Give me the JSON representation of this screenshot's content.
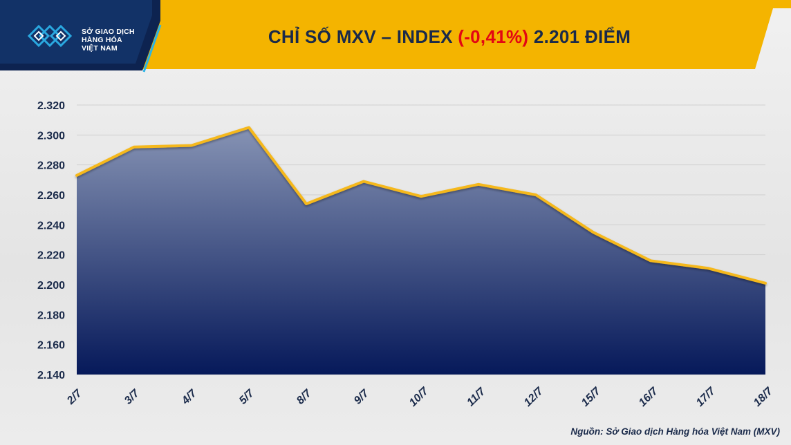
{
  "header": {
    "logo_line1": "SỞ GIAO DỊCH",
    "logo_line2": "HÀNG HÓA",
    "logo_line3": "VIỆT NAM",
    "title_prefix": "CHỈ SỐ MXV – INDEX ",
    "title_change": "(-0,41%)",
    "title_suffix": " 2.201 ĐIỂM"
  },
  "source": "Nguồn: Sở Giao dịch Hàng hóa Việt Nam (MXV)",
  "colors": {
    "banner_yellow": "#f4b400",
    "banner_navy": "#0d2350",
    "line": "#f5b81b",
    "area_top": "#8693b4",
    "area_bottom": "#06195a",
    "negative": "#e30613"
  },
  "chart_data": {
    "type": "area",
    "categories": [
      "2/7",
      "3/7",
      "4/7",
      "5/7",
      "8/7",
      "9/7",
      "10/7",
      "11/7",
      "12/7",
      "15/7",
      "16/7",
      "17/7",
      "18/7"
    ],
    "values": [
      2273,
      2292,
      2293,
      2305,
      2254,
      2269,
      2259,
      2267,
      2260,
      2235,
      2216,
      2211,
      2201
    ],
    "y_ticks": [
      "2.320",
      "2.300",
      "2.280",
      "2.260",
      "2.240",
      "2.220",
      "2.200",
      "2.180",
      "2.160",
      "2.140"
    ],
    "ylim": [
      2140,
      2320
    ],
    "grid": true,
    "title": "CHỈ SỐ MXV – INDEX (-0,41%) 2.201 ĐIỂM",
    "xlabel": "",
    "ylabel": ""
  }
}
